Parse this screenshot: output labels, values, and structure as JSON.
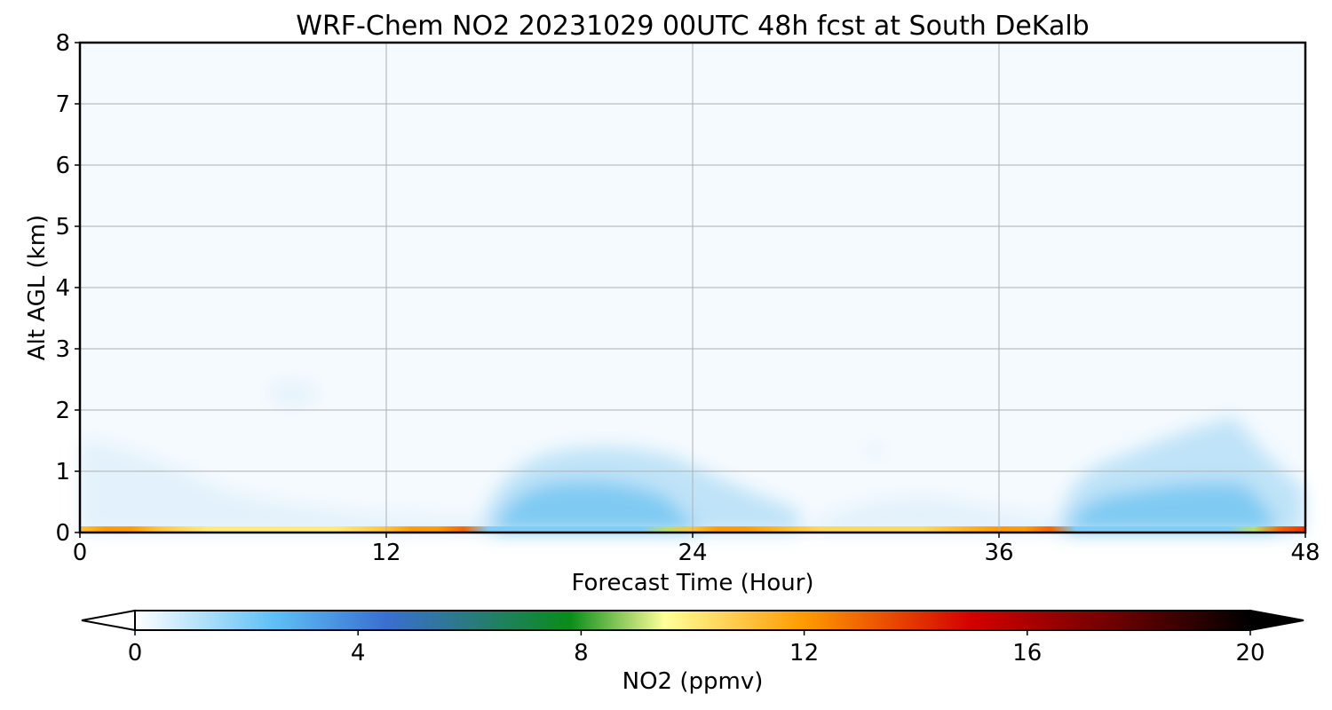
{
  "chart_data": {
    "type": "heatmap",
    "title": "WRF-Chem NO2  20231029 00UTC 48h fcst at South DeKalb",
    "xlabel": "Forecast Time (Hour)",
    "ylabel": "Alt AGL (km)",
    "xlim": [
      0,
      48
    ],
    "ylim": [
      0,
      8
    ],
    "x_ticks": [
      0,
      12,
      24,
      36,
      48
    ],
    "y_ticks": [
      0,
      1,
      2,
      3,
      4,
      5,
      6,
      7,
      8
    ],
    "grid": true,
    "colorbar": {
      "label": "NO2  (ppmv)",
      "vmin": 0,
      "vmax": 20,
      "ticks": [
        0,
        4,
        8,
        12,
        16,
        20
      ],
      "extend": "both",
      "color_stops": [
        {
          "v": 0,
          "c": "#ffffff"
        },
        {
          "v": 2.5,
          "c": "#5ec0f5"
        },
        {
          "v": 4.5,
          "c": "#3a6fd0"
        },
        {
          "v": 6,
          "c": "#2a7a80"
        },
        {
          "v": 7.8,
          "c": "#0a8c1a"
        },
        {
          "v": 9.5,
          "c": "#ffff99"
        },
        {
          "v": 12,
          "c": "#ff9a00"
        },
        {
          "v": 15,
          "c": "#d40000"
        },
        {
          "v": 17.5,
          "c": "#700000"
        },
        {
          "v": 20,
          "c": "#000000"
        }
      ]
    },
    "surface_no2": {
      "hours": [
        0,
        1,
        2,
        3,
        4,
        5,
        6,
        7,
        8,
        9,
        10,
        11,
        12,
        13,
        14,
        15,
        16,
        17,
        18,
        19,
        20,
        21,
        22,
        23,
        24,
        25,
        26,
        27,
        28,
        29,
        30,
        31,
        32,
        33,
        34,
        35,
        36,
        37,
        38,
        39,
        40,
        41,
        42,
        43,
        44,
        45,
        46,
        47,
        48
      ],
      "ppmv": [
        11,
        12,
        12,
        11,
        10.5,
        10,
        10,
        10,
        10,
        10,
        10,
        10.5,
        11,
        12,
        12,
        13,
        2,
        2,
        2,
        2,
        2,
        2,
        2,
        9,
        11,
        12,
        12,
        11.5,
        11,
        10.5,
        10.5,
        10.5,
        10.5,
        10.5,
        11,
        11.5,
        12,
        12,
        13,
        2,
        2,
        2,
        2,
        2,
        2,
        2,
        9,
        13,
        14
      ]
    },
    "surface_layer_depth_km": 0.1
  }
}
